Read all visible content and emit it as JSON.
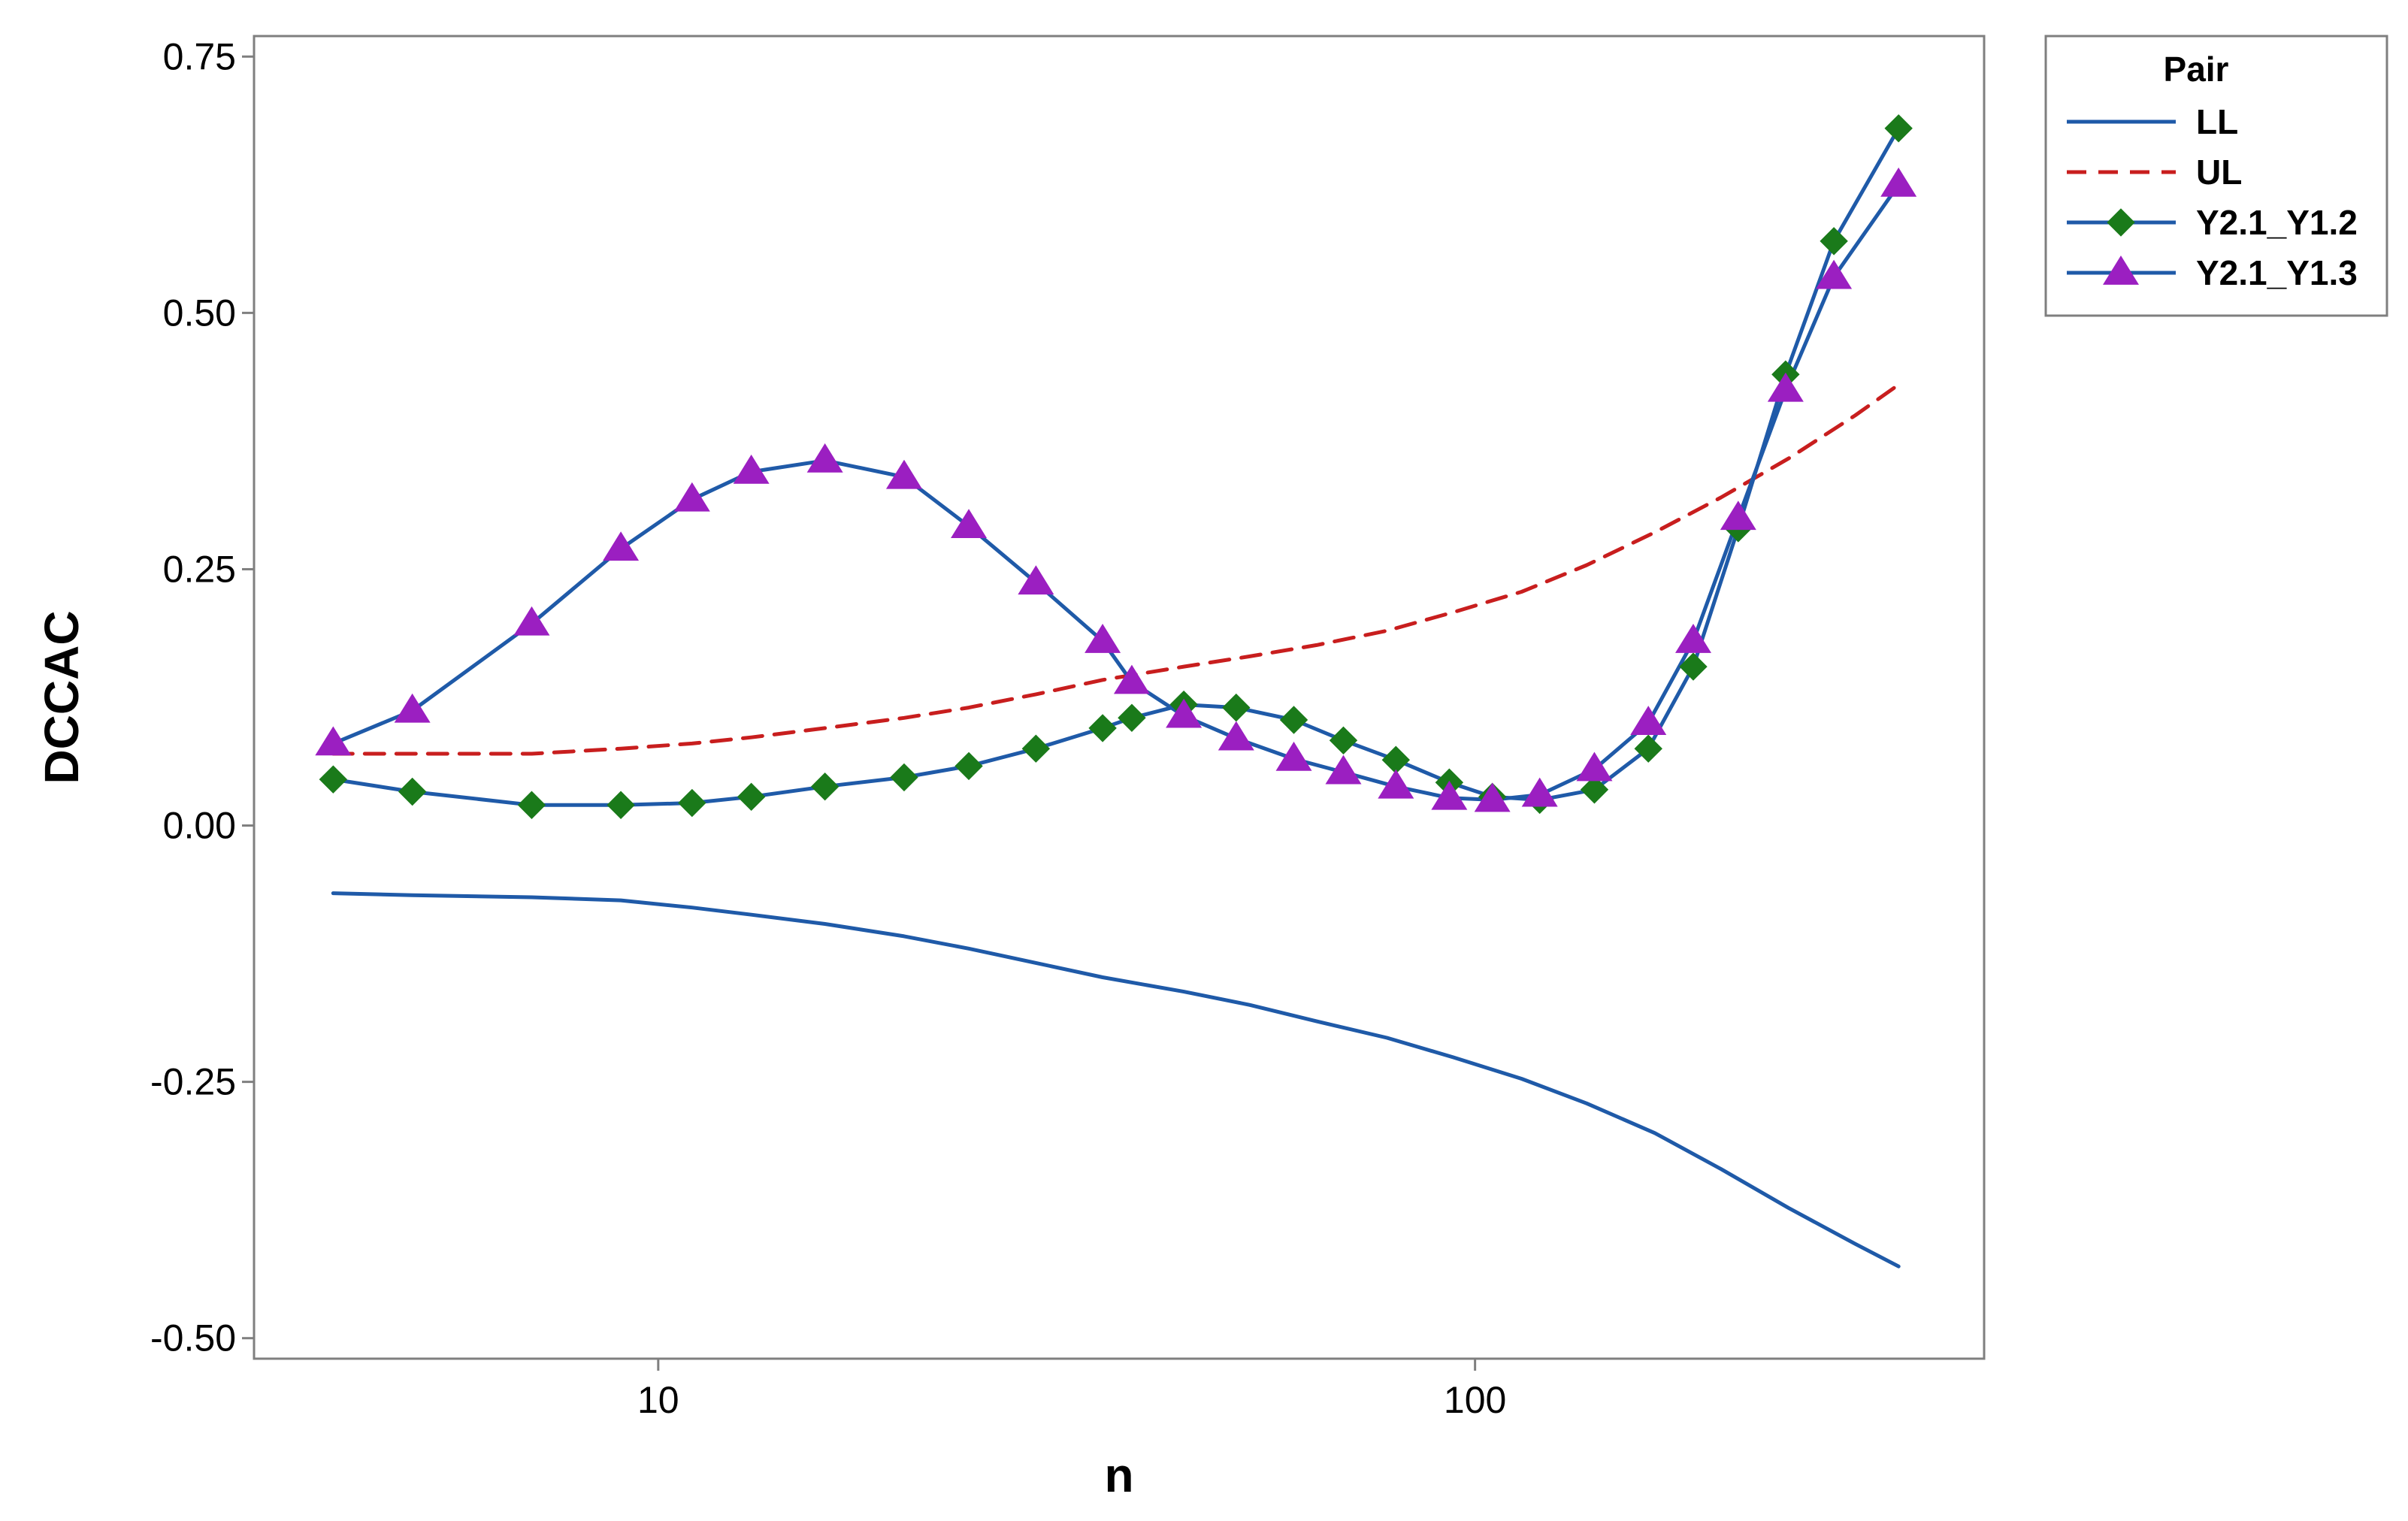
{
  "chart_data": {
    "type": "line",
    "xlabel": "n",
    "ylabel": "DCCAC",
    "x_scale": "log",
    "xlim": [
      3.2,
      420
    ],
    "ylim": [
      -0.52,
      0.77
    ],
    "x_ticks": [
      {
        "value": 10,
        "label": "10"
      },
      {
        "value": 100,
        "label": "100"
      }
    ],
    "y_ticks": [
      {
        "value": 0.75,
        "label": "0.75"
      },
      {
        "value": 0.5,
        "label": "0.50"
      },
      {
        "value": 0.25,
        "label": "0.25"
      },
      {
        "value": 0.0,
        "label": "0.00"
      },
      {
        "value": -0.25,
        "label": "-0.25"
      },
      {
        "value": -0.5,
        "label": "-0.50"
      }
    ],
    "grid": false,
    "legend": {
      "title": "Pair",
      "position": "top-right-outside"
    },
    "series": [
      {
        "name": "LL",
        "color": "#1f5aa8",
        "style": "solid",
        "marker": "none",
        "x": [
          4,
          5,
          7,
          9,
          11,
          13,
          16,
          20,
          24,
          29,
          35,
          44,
          53,
          64,
          78,
          94,
          114,
          137,
          166,
          200,
          242,
          292,
          330
        ],
        "y": [
          -0.066,
          -0.068,
          -0.07,
          -0.073,
          -0.08,
          -0.087,
          -0.096,
          -0.108,
          -0.12,
          -0.134,
          -0.148,
          -0.162,
          -0.175,
          -0.191,
          -0.207,
          -0.226,
          -0.247,
          -0.271,
          -0.3,
          -0.335,
          -0.373,
          -0.408,
          -0.43
        ]
      },
      {
        "name": "UL",
        "color": "#c81e1e",
        "style": "dashed",
        "marker": "none",
        "x": [
          4,
          5,
          7,
          9,
          11,
          13,
          16,
          20,
          24,
          29,
          35,
          44,
          53,
          64,
          78,
          94,
          114,
          137,
          166,
          200,
          242,
          292,
          330
        ],
        "y": [
          0.07,
          0.07,
          0.07,
          0.075,
          0.08,
          0.086,
          0.095,
          0.105,
          0.115,
          0.128,
          0.142,
          0.155,
          0.165,
          0.176,
          0.19,
          0.208,
          0.228,
          0.254,
          0.286,
          0.32,
          0.358,
          0.4,
          0.43
        ]
      },
      {
        "name": "Y2.1_Y1.2",
        "color": "#1f5aa8",
        "marker_color": "#1a7a1a",
        "style": "solid",
        "marker": "diamond",
        "x": [
          4,
          5,
          7,
          9,
          11,
          13,
          16,
          20,
          24,
          29,
          35,
          38,
          44,
          51,
          60,
          69,
          80,
          93,
          105,
          120,
          140,
          163,
          185,
          210,
          240,
          275,
          330
        ],
        "y": [
          0.045,
          0.033,
          0.02,
          0.02,
          0.022,
          0.028,
          0.038,
          0.047,
          0.058,
          0.075,
          0.095,
          0.105,
          0.118,
          0.115,
          0.103,
          0.083,
          0.064,
          0.042,
          0.028,
          0.025,
          0.035,
          0.075,
          0.155,
          0.29,
          0.44,
          0.57,
          0.68
        ]
      },
      {
        "name": "Y2.1_Y1.3",
        "color": "#1f5aa8",
        "marker_color": "#9b1fc1",
        "style": "solid",
        "marker": "triangle",
        "x": [
          4,
          5,
          7,
          9,
          11,
          13,
          16,
          20,
          24,
          29,
          35,
          38,
          44,
          51,
          60,
          69,
          80,
          93,
          105,
          120,
          140,
          163,
          185,
          210,
          240,
          275,
          330
        ],
        "y": [
          0.08,
          0.112,
          0.197,
          0.27,
          0.318,
          0.345,
          0.356,
          0.34,
          0.292,
          0.237,
          0.18,
          0.14,
          0.107,
          0.085,
          0.065,
          0.052,
          0.038,
          0.027,
          0.025,
          0.03,
          0.055,
          0.1,
          0.18,
          0.3,
          0.425,
          0.535,
          0.625
        ]
      }
    ]
  }
}
